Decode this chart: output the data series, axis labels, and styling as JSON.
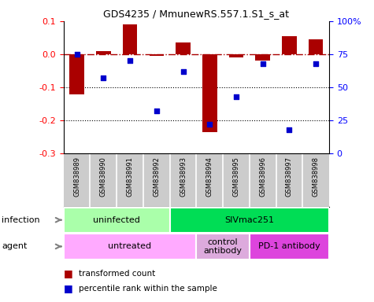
{
  "title": "GDS4235 / MmunewRS.557.1.S1_s_at",
  "samples": [
    "GSM838989",
    "GSM838990",
    "GSM838991",
    "GSM838992",
    "GSM838993",
    "GSM838994",
    "GSM838995",
    "GSM838996",
    "GSM838997",
    "GSM838998"
  ],
  "bar_values": [
    -0.12,
    0.01,
    0.09,
    -0.005,
    0.035,
    -0.235,
    -0.01,
    -0.02,
    0.055,
    0.045
  ],
  "scatter_values": [
    75,
    57,
    70,
    32,
    62,
    22,
    43,
    68,
    18,
    68
  ],
  "bar_color": "#AA0000",
  "scatter_color": "#0000CC",
  "ylim_left": [
    -0.3,
    0.1
  ],
  "ylim_right": [
    0,
    100
  ],
  "yticks_left": [
    0.1,
    0.0,
    -0.1,
    -0.2,
    -0.3
  ],
  "yticks_right": [
    100,
    75,
    50,
    25,
    0
  ],
  "ytick_labels_right": [
    "100%",
    "75",
    "50",
    "25",
    "0"
  ],
  "dotted_lines": [
    -0.1,
    -0.2
  ],
  "infection_groups": [
    {
      "label": "uninfected",
      "start": 0,
      "end": 4,
      "color": "#AAFFAA"
    },
    {
      "label": "SIVmac251",
      "start": 4,
      "end": 10,
      "color": "#00DD55"
    }
  ],
  "agent_groups": [
    {
      "label": "untreated",
      "start": 0,
      "end": 5,
      "color": "#FFAAFF"
    },
    {
      "label": "control\nantibody",
      "start": 5,
      "end": 7,
      "color": "#DDAADD"
    },
    {
      "label": "PD-1 antibody",
      "start": 7,
      "end": 10,
      "color": "#DD44DD"
    }
  ],
  "legend_items": [
    {
      "label": "transformed count",
      "color": "#AA0000"
    },
    {
      "label": "percentile rank within the sample",
      "color": "#0000CC"
    }
  ],
  "infection_label": "infection",
  "agent_label": "agent",
  "sample_bg": "#CCCCCC",
  "background_color": "#FFFFFF"
}
